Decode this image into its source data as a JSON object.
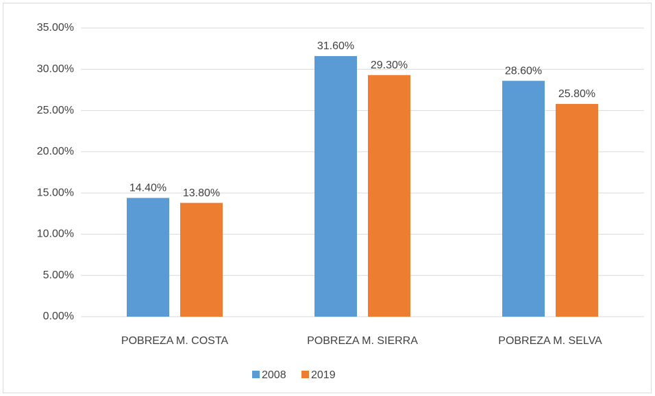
{
  "chart_data": {
    "type": "bar",
    "categories": [
      "POBREZA M. COSTA",
      "POBREZA M. SIERRA",
      "POBREZA M. SELVA"
    ],
    "series": [
      {
        "name": "2008",
        "color": "#5b9bd5",
        "values": [
          14.4,
          31.6,
          28.6
        ],
        "value_labels": [
          "14.40%",
          "31.60%",
          "28.60%"
        ]
      },
      {
        "name": "2019",
        "color": "#ed7d31",
        "values": [
          13.8,
          29.3,
          25.8
        ],
        "value_labels": [
          "13.80%",
          "29.30%",
          "25.80%"
        ]
      }
    ],
    "ylim": [
      0,
      35
    ],
    "yticks": [
      {
        "value": 0,
        "label": "0.00%"
      },
      {
        "value": 5,
        "label": "5.00%"
      },
      {
        "value": 10,
        "label": "10.00%"
      },
      {
        "value": 15,
        "label": "15.00%"
      },
      {
        "value": 20,
        "label": "20.00%"
      },
      {
        "value": 25,
        "label": "25.00%"
      },
      {
        "value": 30,
        "label": "30.00%"
      },
      {
        "value": 35,
        "label": "35.00%"
      }
    ],
    "grid": true,
    "legend": "bottom"
  }
}
